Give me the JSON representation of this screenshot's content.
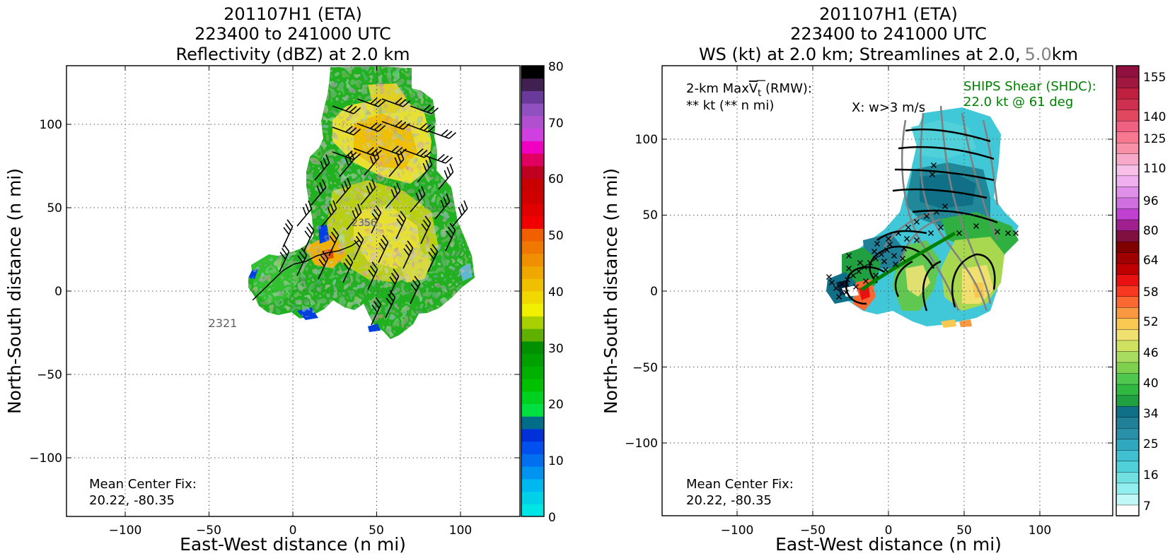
{
  "left_panel": {
    "title_lines": [
      "201107H1 (ETA)",
      "223400 to 241000 UTC",
      "Reflectivity (dBZ) at 2.0 km"
    ],
    "xlabel": "East-West distance (n mi)",
    "ylabel": "North-South distance (n mi)",
    "center_fix_label": "Mean Center Fix:",
    "center_fix_value": "20.22, -80.35",
    "flight_label_1": "2321",
    "flight_label_2": "2356",
    "xticks": [
      "−100",
      "−50",
      "0",
      "50",
      "100"
    ],
    "yticks": [
      "100",
      "50",
      "0",
      "−50",
      "−100"
    ],
    "colorbar_ticks": [
      "80",
      "70",
      "60",
      "50",
      "40",
      "30",
      "20",
      "10",
      "0"
    ]
  },
  "right_panel": {
    "title_line1": "201107H1 (ETA)",
    "title_line2": "223400 to 241000 UTC",
    "title_line3_a": "WS (kt) at 2.0 km; Streamlines at 2.0,",
    "title_line3_b": "5.0",
    "title_line3_c": "km",
    "maxvt_prefix": "2-km Max",
    "maxvt_sym": "V",
    "maxvt_sub": "t",
    "maxvt_suffix": " (RMW):",
    "maxvt_value": "** kt (** n mi)",
    "updraft_legend": "X: w>3 m/s",
    "shear_title": "SHIPS Shear (SHDC):",
    "shear_value": "22.0 kt @ 61 deg",
    "center_fix_label": "Mean Center Fix:",
    "center_fix_value": "20.22, -80.35",
    "xlabel": "East-West distance (n mi)",
    "ylabel": "North-South distance (n mi)",
    "xticks": [
      "−100",
      "−50",
      "0",
      "50",
      "100"
    ],
    "yticks": [
      "100",
      "50",
      "0",
      "−50",
      "−100"
    ],
    "colorbar_ticks": [
      "155",
      "140",
      "125",
      "110",
      "96",
      "80",
      "64",
      "58",
      "52",
      "46",
      "40",
      "34",
      "25",
      "16",
      "7"
    ]
  },
  "colors": {
    "reflectivity_scale": [
      "#00e5e5",
      "#00d0e8",
      "#00b8f0",
      "#0094f0",
      "#0070f0",
      "#0050f0",
      "#0030d8",
      "#006e88",
      "#00e040",
      "#00d020",
      "#00c000",
      "#00b000",
      "#00a000",
      "#009000",
      "#60b000",
      "#a8d000",
      "#f0f000",
      "#f0d800",
      "#f0c000",
      "#f0a800",
      "#f09000",
      "#f07800",
      "#f06000",
      "#f00000",
      "#e00000",
      "#d00000",
      "#c80000",
      "#c00020",
      "#e00060",
      "#f000c0",
      "#d040e0",
      "#b050d0",
      "#9050c0",
      "#6a3a9a",
      "#402050",
      "#000000"
    ],
    "windspeed_scale": [
      "#ffffff",
      "#c0f8f8",
      "#90eeee",
      "#70e0e0",
      "#50d0d8",
      "#40c0d0",
      "#30a8c0",
      "#2890a8",
      "#208098",
      "#107088",
      "#20a040",
      "#30b840",
      "#50c850",
      "#80d050",
      "#a8dc60",
      "#d0e060",
      "#f0e070",
      "#f8c850",
      "#f89840",
      "#f86830",
      "#f83820",
      "#e81010",
      "#c00000",
      "#a00000",
      "#800000",
      "#801040",
      "#a02090",
      "#c040d0",
      "#d070e0",
      "#e090e8",
      "#f0b0f0",
      "#f8c0e8",
      "#f8a8c8",
      "#f890a8",
      "#f87890",
      "#f06080",
      "#e04860",
      "#d03050",
      "#c02040",
      "#a01840",
      "#901040"
    ],
    "shear_text": "#008000",
    "streamline_2km": "#000000",
    "streamline_5km": "#808080"
  },
  "chart_data": [
    {
      "type": "heatmap",
      "title": "201107H1 (ETA) 223400 to 241000 UTC Reflectivity (dBZ) at 2.0 km",
      "xlabel": "East-West distance (n mi)",
      "ylabel": "North-South distance (n mi)",
      "xlim": [
        -135,
        135
      ],
      "ylim": [
        -135,
        135
      ],
      "colorbar_range": [
        0,
        80
      ],
      "colorbar_label_values": [
        0,
        10,
        20,
        30,
        40,
        50,
        60,
        70,
        80
      ],
      "grid": true,
      "center_fix": [
        20.22,
        -80.35
      ],
      "flight_track_labels": [
        "2321",
        "2356"
      ]
    },
    {
      "type": "heatmap",
      "title": "201107H1 (ETA) 223400 to 241000 UTC WS (kt) at 2.0 km; Streamlines at 2.0, 5.0 km",
      "xlabel": "East-West distance (n mi)",
      "ylabel": "North-South distance (n mi)",
      "xlim": [
        -150,
        150
      ],
      "ylim": [
        -148,
        148
      ],
      "colorbar_label_values": [
        7,
        16,
        25,
        34,
        40,
        46,
        52,
        58,
        64,
        80,
        96,
        110,
        125,
        140,
        155
      ],
      "grid": true,
      "center_fix": [
        20.22,
        -80.35
      ],
      "ships_shear_kt": 22.0,
      "ships_shear_dir_deg": 61
    }
  ]
}
